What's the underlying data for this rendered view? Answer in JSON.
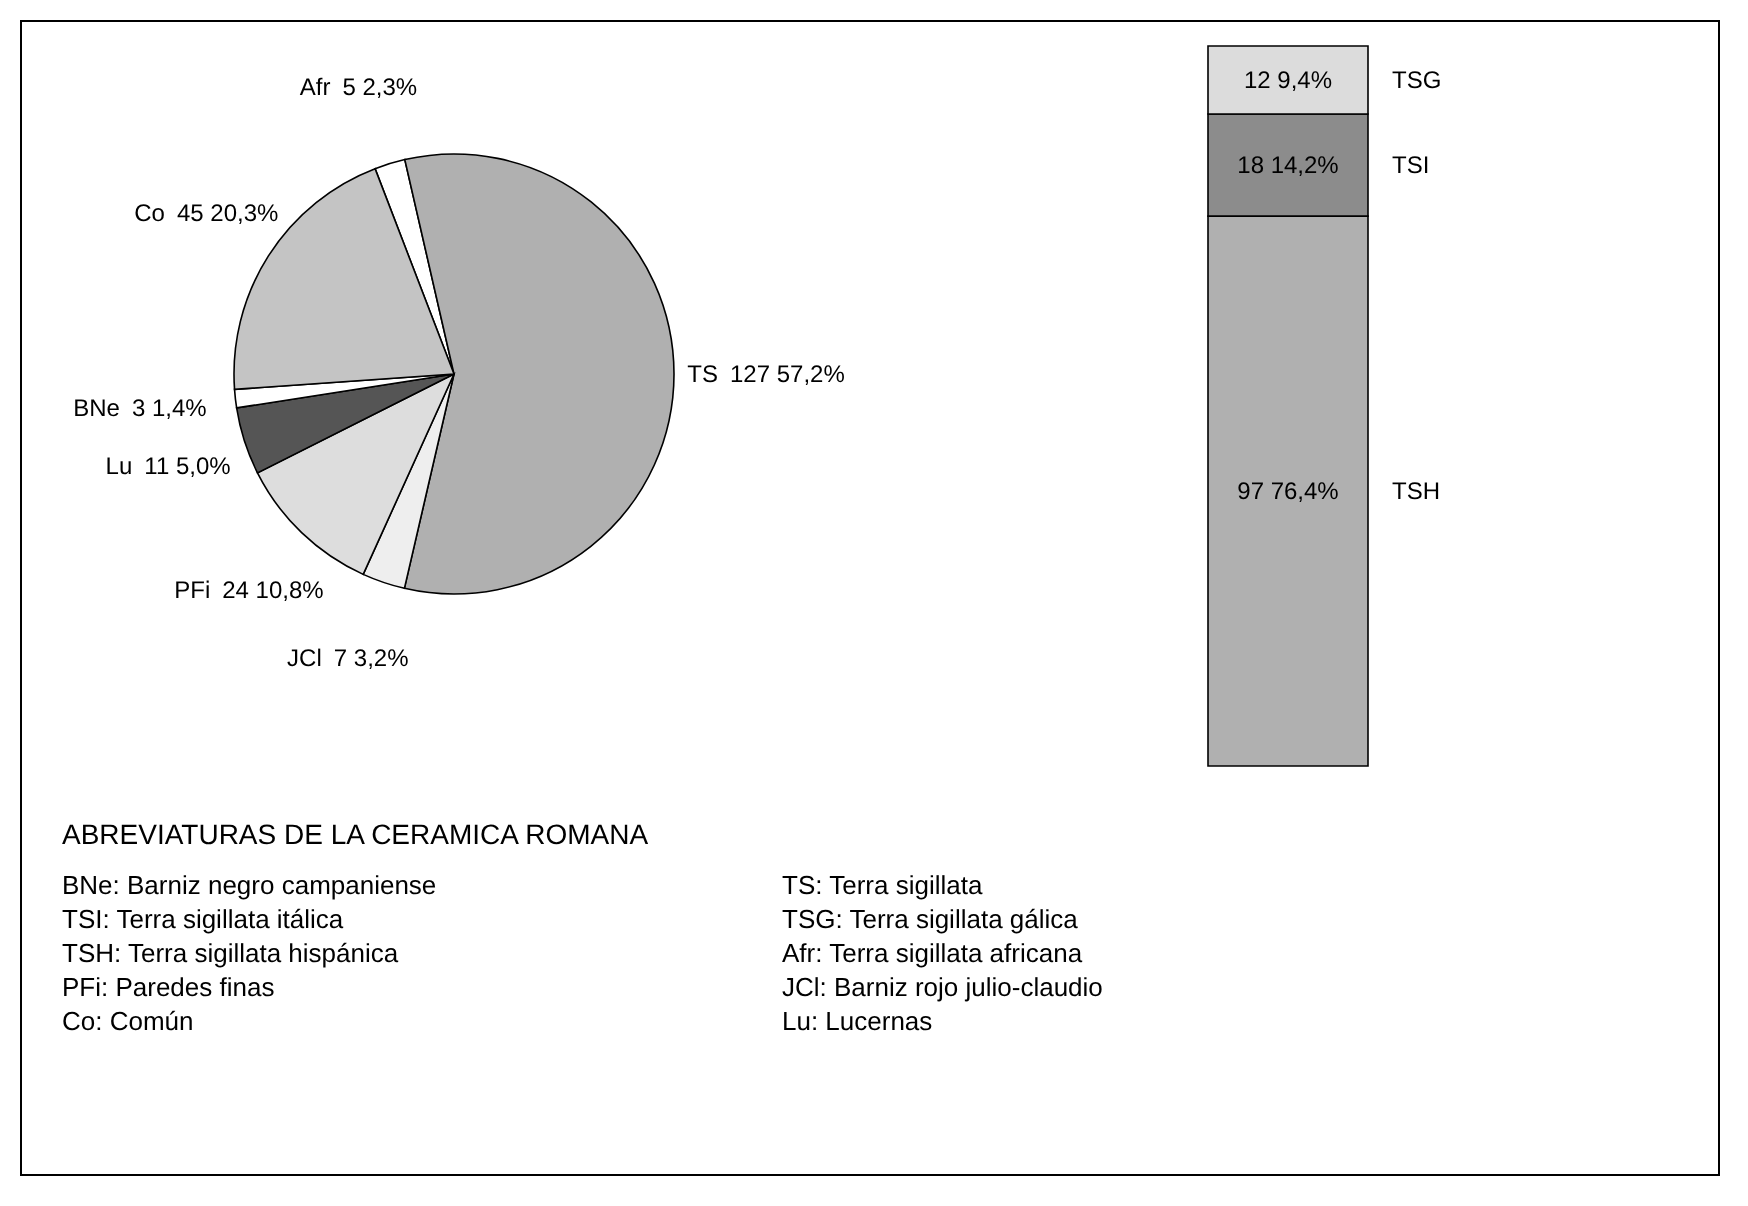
{
  "chart_data": [
    {
      "type": "pie",
      "categories": [
        "Afr",
        "TS",
        "JCl",
        "PFi",
        "Lu",
        "BNe",
        "Co"
      ],
      "values": [
        5,
        127,
        7,
        24,
        11,
        3,
        45
      ],
      "colors": [
        "#ffffff",
        "#b0b0b0",
        "#eeeeee",
        "#dddddd",
        "#555555",
        "#ffffff",
        "#c4c4c4"
      ],
      "value_labels": [
        "5 2,3%",
        "127 57,2%",
        "7 3,2%",
        "24 10,8%",
        "11 5,0%",
        "3 1,4%",
        "45 20,3%"
      ]
    },
    {
      "type": "bar",
      "stacked": true,
      "categories": [
        null
      ],
      "series": [
        {
          "name": "TSH",
          "color": "#b0b0b0",
          "values": [
            97
          ],
          "value_labels": [
            "97 76,4%"
          ]
        },
        {
          "name": "TSI",
          "color": "#8c8c8c",
          "values": [
            18
          ],
          "value_labels": [
            "18 14,2%"
          ]
        },
        {
          "name": "TSG",
          "color": "#dcdcdc",
          "values": [
            12
          ],
          "value_labels": [
            "12 9,4%"
          ]
        }
      ]
    },
    {
      "type": "other",
      "title": "ABREVIATURAS DE LA CERAMICA ROMANA",
      "annotations": [
        "BNe: Barniz negro campaniense",
        "TS: Terra sigillata",
        "TSI: Terra sigillata itálica",
        "TSG: Terra sigillata gálica",
        "TSH: Terra sigillata hispánica",
        "Afr: Terra sigillata africana",
        "PFi: Paredes finas",
        "JCl: Barniz rojo julio-claudio",
        "Co: Común",
        "Lu: Lucernas"
      ]
    }
  ]
}
